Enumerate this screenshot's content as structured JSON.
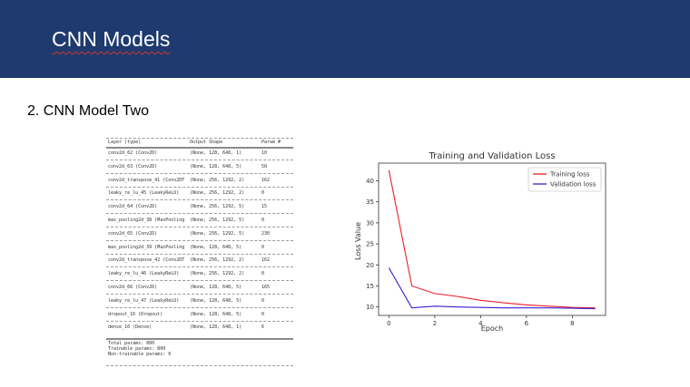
{
  "slide": {
    "title": "CNN Models",
    "section": "2. CNN Model Two"
  },
  "summary": {
    "headers": [
      "Layer (type)",
      "Output Shape",
      "Param #"
    ],
    "rows": [
      [
        "conv2d_62 (Conv2D)",
        "(None, 128, 648, 1)",
        "10"
      ],
      [
        "conv2d_63 (Conv2D)",
        "(None, 128, 648, 5)",
        "50"
      ],
      [
        "conv2d_transpose_41 (Conv2DT",
        "(None, 256, 1292, 2)",
        "162"
      ],
      [
        "leaky_re_lu_45 (LeakyReLU)",
        "(None, 256, 1292, 2)",
        "0"
      ],
      [
        "conv2d_64 (Conv2D)",
        "(None, 256, 1292, 5)",
        "15"
      ],
      [
        "max_pooling2d_38 (MaxPooling",
        "(None, 256, 1292, 5)",
        "0"
      ],
      [
        "conv2d_65 (Conv2D)",
        "(None, 256, 1292, 5)",
        "230"
      ],
      [
        "max_pooling2d_39 (MaxPooling",
        "(None, 128, 648, 5)",
        "0"
      ],
      [
        "conv2d_transpose_42 (Conv2DT",
        "(None, 256, 1292, 2)",
        "162"
      ],
      [
        "leaky_re_lu_46 (LeakyReLU)",
        "(None, 256, 1292, 2)",
        "0"
      ],
      [
        "conv2d_66 (Conv2D)",
        "(None, 128, 648, 5)",
        "165"
      ],
      [
        "leaky_re_lu_47 (LeakyReLU)",
        "(None, 128, 648, 5)",
        "0"
      ],
      [
        "dropout_16 (Dropout)",
        "(None, 128, 648, 5)",
        "0"
      ],
      [
        "dense_16 (Dense)",
        "(None, 128, 648, 1)",
        "6"
      ]
    ],
    "footer": [
      "Total params: 800",
      "Trainable params: 800",
      "Non-trainable params: 0"
    ]
  },
  "chart_data": {
    "type": "line",
    "title": "Training and Validation Loss",
    "xlabel": "Epoch",
    "ylabel": "Loss Value",
    "x": [
      0,
      1,
      2,
      3,
      4,
      5,
      6,
      7,
      8,
      9
    ],
    "series": [
      {
        "name": "Training loss",
        "color": "#e8202a",
        "values": [
          42.5,
          15.0,
          13.2,
          12.5,
          11.6,
          11.0,
          10.5,
          10.2,
          9.9,
          9.8
        ]
      },
      {
        "name": "Validation loss",
        "color": "#3a1fd6",
        "values": [
          19.3,
          9.8,
          10.2,
          10.0,
          9.9,
          9.8,
          9.8,
          9.8,
          9.7,
          9.6
        ]
      }
    ],
    "xlim": [
      -0.45,
      9.45
    ],
    "ylim": [
      8.0,
      44.2
    ],
    "xticks": [
      0,
      2,
      4,
      6,
      8
    ],
    "yticks": [
      10,
      15,
      20,
      25,
      30,
      35,
      40
    ],
    "legend": "top-right",
    "grid": false
  }
}
